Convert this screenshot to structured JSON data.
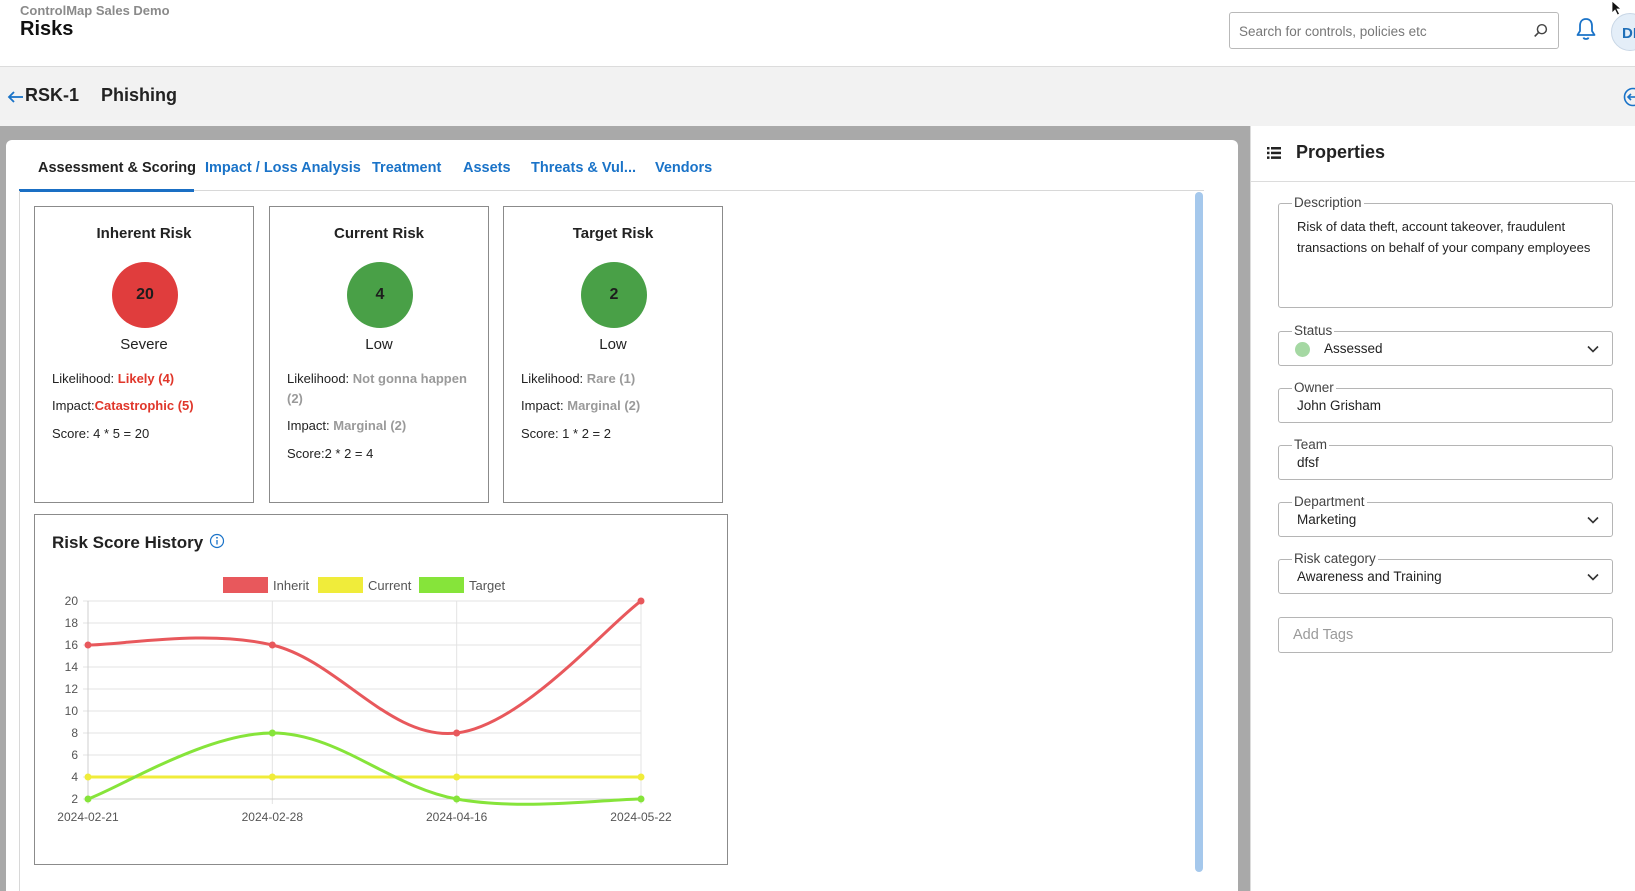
{
  "header": {
    "org": "ControlMap Sales Demo",
    "title": "Risks",
    "search_placeholder": "Search for controls, policies etc",
    "avatar": "DF"
  },
  "risk": {
    "id": "RSK-1",
    "name": "Phishing"
  },
  "tabs": [
    {
      "label": "Assessment & Scoring",
      "active": true
    },
    {
      "label": "Impact / Loss Analysis"
    },
    {
      "label": "Treatment"
    },
    {
      "label": "Assets"
    },
    {
      "label": "Threats & Vul..."
    },
    {
      "label": "Vendors"
    }
  ],
  "cards": [
    {
      "title": "Inherent Risk",
      "score": "20",
      "level": "Severe",
      "color": "#e03d3d",
      "likelihood_label": "Likelihood: ",
      "likelihood_value": "Likely (4)",
      "impact_label": "Impact:",
      "impact_value": "Catastrophic (5)",
      "score_text": "Score: 4 * 5 = 20"
    },
    {
      "title": "Current Risk",
      "score": "4",
      "level": "Low",
      "color": "#49a047",
      "likelihood_label": "Likelihood: ",
      "likelihood_value": "Not gonna happen (2)",
      "impact_label": "Impact: ",
      "impact_value": "Marginal (2)",
      "score_text": "Score:2 * 2 = 4"
    },
    {
      "title": "Target Risk",
      "score": "2",
      "level": "Low",
      "color": "#49a047",
      "likelihood_label": "Likelihood: ",
      "likelihood_value": "Rare (1)",
      "impact_label": "Impact: ",
      "impact_value": "Marginal (2)",
      "score_text": "Score: 1 * 2 = 2"
    }
  ],
  "history": {
    "title": "Risk Score History"
  },
  "chart_data": {
    "type": "line",
    "x": [
      "2024-02-21",
      "2024-02-28",
      "2024-04-16",
      "2024-05-22"
    ],
    "series": [
      {
        "name": "Inherit",
        "color": "#e8585c",
        "values": [
          16,
          16,
          8,
          20
        ]
      },
      {
        "name": "Current",
        "color": "#f0ec3a",
        "values": [
          4,
          4,
          4,
          4
        ]
      },
      {
        "name": "Target",
        "color": "#86e43a",
        "values": [
          2,
          8,
          2,
          2
        ]
      }
    ],
    "ylim": [
      2,
      20
    ],
    "yticks": [
      2,
      4,
      6,
      8,
      10,
      12,
      14,
      16,
      18,
      20
    ],
    "grid": true,
    "legend": "top"
  },
  "properties": {
    "title": "Properties",
    "description_label": "Description",
    "description": "Risk of data theft, account takeover, fraudulent transactions on behalf of your company employees",
    "status_label": "Status",
    "status": "Assessed",
    "owner_label": "Owner",
    "owner": "John Grisham",
    "team_label": "Team",
    "team": "dfsf",
    "department_label": "Department",
    "department": "Marketing",
    "category_label": "Risk category",
    "category": "Awareness and Training",
    "tags_placeholder": "Add Tags"
  }
}
